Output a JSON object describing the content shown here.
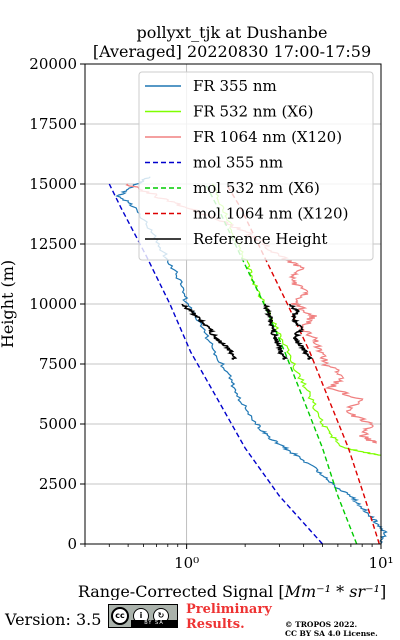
{
  "title_line1": "pollyxt_tjk at Dushanbe",
  "title_line2": "[Averaged] 20220830 17:00-17:59",
  "footer": {
    "version": "Version: 3.5",
    "cc_badge_text": "BY SA",
    "preliminary_line1": "Preliminary",
    "preliminary_line2": "Results.",
    "copyright_line1": "© TROPOS 2022.",
    "copyright_line2": "CC BY SA 4.0 License."
  },
  "chart_data": {
    "type": "line",
    "title": "pollyxt_tjk at Dushanbe [Averaged] 20220830 17:00-17:59",
    "xlabel_base": "Range-Corrected Signal [",
    "xlabel_unit": "Mm^-1 * sr^-1",
    "xlabel_unit_display": "Mm⁻¹ * sr⁻¹",
    "xlabel_close": "]",
    "ylabel": "Height (m)",
    "xscale": "log",
    "xlim": [
      0.3,
      10
    ],
    "ylim": [
      0,
      20000
    ],
    "xticks": [
      1,
      10
    ],
    "xtick_labels": [
      "10⁰",
      "10¹"
    ],
    "yticks": [
      0,
      2500,
      5000,
      7500,
      10000,
      12500,
      15000,
      17500,
      20000
    ],
    "ytick_labels": [
      "0",
      "2500",
      "5000",
      "7500",
      "10000",
      "12500",
      "15000",
      "17500",
      "20000"
    ],
    "grid": true,
    "legend_position": "top-right",
    "series": [
      {
        "name": "FR 355 nm",
        "color": "#1f77b4",
        "style": "solid",
        "h": [
          0,
          500,
          1000,
          1500,
          2000,
          2500,
          3000,
          3500,
          4000,
          4500,
          5000,
          6000,
          7000,
          8000,
          9000,
          10000,
          11000,
          12000,
          13000,
          14000,
          14500,
          15000,
          15300
        ],
        "x": [
          10,
          10.5,
          9.2,
          8.0,
          7.0,
          5.6,
          4.8,
          4.0,
          3.2,
          2.6,
          2.3,
          1.9,
          1.65,
          1.4,
          1.2,
          1.0,
          0.92,
          0.78,
          0.66,
          0.55,
          0.45,
          0.55,
          0.65
        ]
      },
      {
        "name": "FR 532 nm (X6)",
        "color": "#7fff00",
        "style": "solid",
        "h": [
          3700,
          3800,
          4000,
          4500,
          5000,
          6000,
          7000,
          8000,
          9000,
          10000,
          11000,
          12000,
          13000,
          14000,
          15000
        ],
        "x": [
          10,
          8.5,
          6.5,
          5.6,
          5.0,
          4.4,
          3.8,
          3.3,
          2.9,
          2.5,
          2.2,
          1.95,
          1.75,
          1.55,
          1.35
        ]
      },
      {
        "name": "FR 1064 nm (X120)",
        "color": "#f08080",
        "style": "solid",
        "h": [
          4200,
          4500,
          5000,
          5500,
          6000,
          6500,
          7000,
          7500,
          8000,
          8500,
          9000,
          9500,
          10000,
          10500,
          11000,
          11500,
          12000,
          12500,
          13000,
          13500,
          14000,
          14500,
          15000
        ],
        "x": [
          9.5,
          8.0,
          9.0,
          6.5,
          8.0,
          5.5,
          6.5,
          5.2,
          4.8,
          4.6,
          4.0,
          4.5,
          3.6,
          4.2,
          3.4,
          4.0,
          3.0,
          2.5,
          2.0,
          1.5,
          1.0,
          0.7,
          0.5
        ]
      },
      {
        "name": "mol 355 nm",
        "color": "#0000cd",
        "style": "dashed",
        "h": [
          0,
          2000,
          4000,
          6000,
          8000,
          10000,
          12000,
          14000,
          15000
        ],
        "x": [
          5.0,
          3.0,
          2.0,
          1.45,
          1.05,
          0.82,
          0.62,
          0.46,
          0.4
        ]
      },
      {
        "name": "mol 532 nm (X6)",
        "color": "#00cc00",
        "style": "dashed",
        "h": [
          0,
          2000,
          4000,
          6000,
          8000,
          10000,
          12000,
          14000,
          15000
        ],
        "x": [
          7.5,
          6.0,
          5.0,
          4.0,
          3.2,
          2.5,
          1.9,
          1.45,
          1.25
        ]
      },
      {
        "name": "mol 1064 nm (X120)",
        "color": "#dd0000",
        "style": "dashed",
        "h": [
          0,
          2000,
          4000,
          6000,
          8000,
          10000,
          12000,
          14000,
          15000
        ],
        "x": [
          9.8,
          8.2,
          6.8,
          5.4,
          4.3,
          3.3,
          2.5,
          1.9,
          1.6
        ]
      },
      {
        "name": "Reference Height",
        "color": "#000000",
        "style": "solid",
        "reference": true,
        "segments": [
          {
            "h": [
              7700,
              8000,
              8300,
              8600,
              9000,
              9400,
              9700,
              10000
            ],
            "x": [
              1.75,
              1.7,
              1.55,
              1.4,
              1.3,
              1.15,
              1.05,
              0.95
            ]
          },
          {
            "h": [
              7700,
              8000,
              8300,
              8600,
              9000,
              9400,
              9700,
              10000
            ],
            "x": [
              3.2,
              3.05,
              2.95,
              2.85,
              2.75,
              2.7,
              2.6,
              2.55
            ]
          },
          {
            "h": [
              7700,
              8000,
              8300,
              8600,
              9000,
              9400,
              9700,
              10000
            ],
            "x": [
              4.3,
              4.1,
              3.8,
              3.6,
              3.9,
              3.5,
              3.7,
              3.4
            ]
          }
        ]
      }
    ]
  }
}
